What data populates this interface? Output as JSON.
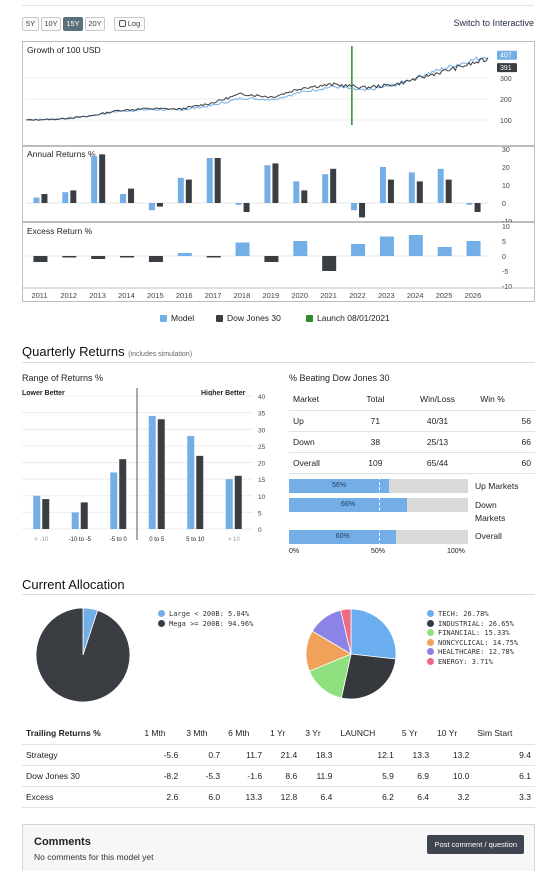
{
  "toolbar": {
    "buttons": [
      "5Y",
      "10Y",
      "15Y",
      "20Y"
    ],
    "active": "15Y",
    "log_label": "Log",
    "switch_label": "Switch to Interactive"
  },
  "growth": {
    "title": "Growth of 100 USD",
    "model_end_label": "407",
    "dow_end_label": "391",
    "yticks": [
      "300",
      "200",
      "100"
    ]
  },
  "annual": {
    "title": "Annual Returns %",
    "yticks": [
      "30",
      "20",
      "10",
      "0",
      "-10"
    ]
  },
  "excess": {
    "title": "Excess Return %",
    "yticks": [
      "10",
      "5",
      "0",
      "-5",
      "-10"
    ]
  },
  "xyears": [
    "2011",
    "2012",
    "2013",
    "2014",
    "2015",
    "2016",
    "2017",
    "2018",
    "2019",
    "2020",
    "2021",
    "2022",
    "2023",
    "2024",
    "2025",
    "2026"
  ],
  "legend": {
    "model": "Model",
    "dow": "Dow Jones 30",
    "launch": "Launch 08/01/2021"
  },
  "colors": {
    "model": "#74aee6",
    "dow": "#3a3d42",
    "launch": "#2e8b2e",
    "tech": "#6aaef0",
    "industrial": "#35383d",
    "financial": "#8fe07e",
    "noncyclical": "#f0a25a",
    "healthcare": "#8c83e6",
    "energy": "#ee6a83"
  },
  "quarterly": {
    "title": "Quarterly Returns",
    "subtitle": "(includes simulation)"
  },
  "range": {
    "title": "Range of Returns %",
    "lower": "Lower Better",
    "higher": "Higher Better",
    "categories": [
      "< -10",
      "-10 to -5",
      "-5 to 0",
      "0 to 5",
      "5 to 10",
      "> 10"
    ],
    "yticks": [
      "40",
      "35",
      "30",
      "25",
      "20",
      "15",
      "10",
      "5",
      "0"
    ]
  },
  "beating": {
    "title": "% Beating Dow Jones 30",
    "headers": [
      "Market",
      "Total",
      "Win/Loss",
      "Win %"
    ],
    "rows": [
      [
        "Up",
        "71",
        "40/31",
        "56"
      ],
      [
        "Down",
        "38",
        "25/13",
        "66"
      ],
      [
        "Overall",
        "109",
        "65/44",
        "60"
      ]
    ],
    "bars": [
      {
        "label": "56%",
        "market": "Up Markets",
        "pct": 56
      },
      {
        "label": "66%",
        "market": "Down Markets",
        "pct": 66
      },
      {
        "label": "60%",
        "market": "Overall",
        "pct": 60
      }
    ],
    "axis": [
      "0%",
      "50%",
      "100%"
    ]
  },
  "allocation": {
    "title": "Current Allocation",
    "size": [
      {
        "label": "Large < 200B: 5.04%",
        "pct": 5.04,
        "color": "#74aee6"
      },
      {
        "label": "Mega >= 200B: 94.96%",
        "pct": 94.96,
        "color": "#3a3d42"
      }
    ],
    "sector": [
      {
        "label": "TECH: 26.78%",
        "pct": 26.78,
        "color": "#6aaef0"
      },
      {
        "label": "INDUSTRIAL: 26.65%",
        "pct": 26.65,
        "color": "#35383d"
      },
      {
        "label": "FINANCIAL: 15.33%",
        "pct": 15.33,
        "color": "#8fe07e"
      },
      {
        "label": "NONCYCLICAL: 14.75%",
        "pct": 14.75,
        "color": "#f0a25a"
      },
      {
        "label": "HEALTHCARE: 12.78%",
        "pct": 12.78,
        "color": "#8c83e6"
      },
      {
        "label": "ENERGY: 3.71%",
        "pct": 3.71,
        "color": "#ee6a83"
      }
    ]
  },
  "trailing": {
    "headers": [
      "Trailing Returns %",
      "1 Mth",
      "3 Mth",
      "6 Mth",
      "1 Yr",
      "3 Yr",
      "LAUNCH",
      "5 Yr",
      "10 Yr",
      "Sim Start"
    ],
    "rows": [
      [
        "Strategy",
        "-5.6",
        "0.7",
        "11.7",
        "21.4",
        "18.3",
        "12.1",
        "13.3",
        "13.2",
        "9.4"
      ],
      [
        "Dow Jones 30",
        "-8.2",
        "-5.3",
        "-1.6",
        "8.6",
        "11.9",
        "5.9",
        "6.9",
        "10.0",
        "6.1"
      ],
      [
        "Excess",
        "2.6",
        "6.0",
        "13.3",
        "12.8",
        "6.4",
        "6.2",
        "6.4",
        "3.2",
        "3.3"
      ]
    ]
  },
  "comments": {
    "title": "Comments",
    "empty": "No comments for this model yet",
    "post_button": "Post comment / question"
  },
  "chart_data": [
    {
      "type": "line",
      "title": "Growth of 100 USD",
      "x": [
        2011,
        2012,
        2013,
        2014,
        2015,
        2016,
        2017,
        2018,
        2019,
        2020,
        2021,
        2022,
        2023,
        2024,
        2025,
        2026
      ],
      "series": [
        {
          "name": "Model",
          "values": [
            100,
            105,
            118,
            142,
            150,
            148,
            168,
            205,
            198,
            235,
            260,
            240,
            268,
            320,
            365,
            407
          ]
        },
        {
          "name": "Dow Jones 30",
          "values": [
            100,
            104,
            117,
            146,
            155,
            152,
            180,
            225,
            210,
            255,
            270,
            255,
            270,
            310,
            350,
            391
          ]
        }
      ],
      "annotations": [
        {
          "label": "Launch 08/01/2021",
          "x": 2021.58
        }
      ],
      "ylim": [
        0,
        420
      ]
    },
    {
      "type": "bar",
      "title": "Annual Returns %",
      "categories": [
        "2011",
        "2012",
        "2013",
        "2014",
        "2015",
        "2016",
        "2017",
        "2018",
        "2019",
        "2020",
        "2021",
        "2022",
        "2023",
        "2024",
        "2025",
        "2026"
      ],
      "series": [
        {
          "name": "Model",
          "values": [
            3,
            6,
            26,
            5,
            -4,
            14,
            25,
            -1,
            21,
            12,
            16,
            -4,
            20,
            17,
            19,
            -1
          ]
        },
        {
          "name": "Dow Jones 30",
          "values": [
            5,
            7,
            27,
            8,
            -2,
            13,
            25,
            -5,
            22,
            7,
            19,
            -8,
            13,
            12,
            13,
            -5
          ]
        }
      ],
      "ylim": [
        -10,
        30
      ]
    },
    {
      "type": "bar",
      "title": "Excess Return %",
      "categories": [
        "2011",
        "2012",
        "2013",
        "2014",
        "2015",
        "2016",
        "2017",
        "2018",
        "2019",
        "2020",
        "2021",
        "2022",
        "2023",
        "2024",
        "2025",
        "2026"
      ],
      "series": [
        {
          "name": "Excess",
          "values": [
            -2,
            -0.5,
            -1,
            -0.5,
            -2,
            1,
            -0.5,
            4.5,
            -2,
            5,
            -5,
            4,
            6.5,
            7,
            3,
            5
          ]
        }
      ],
      "ylim": [
        -10,
        10
      ]
    },
    {
      "type": "bar",
      "title": "Range of Returns %",
      "categories": [
        "< -10",
        "-10 to -5",
        "-5 to 0",
        "0 to 5",
        "5 to 10",
        "> 10"
      ],
      "series": [
        {
          "name": "Model",
          "values": [
            10,
            5,
            17,
            34,
            28,
            15
          ]
        },
        {
          "name": "Dow Jones 30",
          "values": [
            9,
            8,
            21,
            33,
            22,
            16
          ]
        }
      ],
      "ylim": [
        0,
        40
      ]
    },
    {
      "type": "pie",
      "categories": [
        "Large < 200B",
        "Mega >= 200B"
      ],
      "values": [
        5.04,
        94.96
      ]
    },
    {
      "type": "pie",
      "categories": [
        "TECH",
        "INDUSTRIAL",
        "FINANCIAL",
        "NONCYCLICAL",
        "HEALTHCARE",
        "ENERGY"
      ],
      "values": [
        26.78,
        26.65,
        15.33,
        14.75,
        12.78,
        3.71
      ]
    }
  ]
}
